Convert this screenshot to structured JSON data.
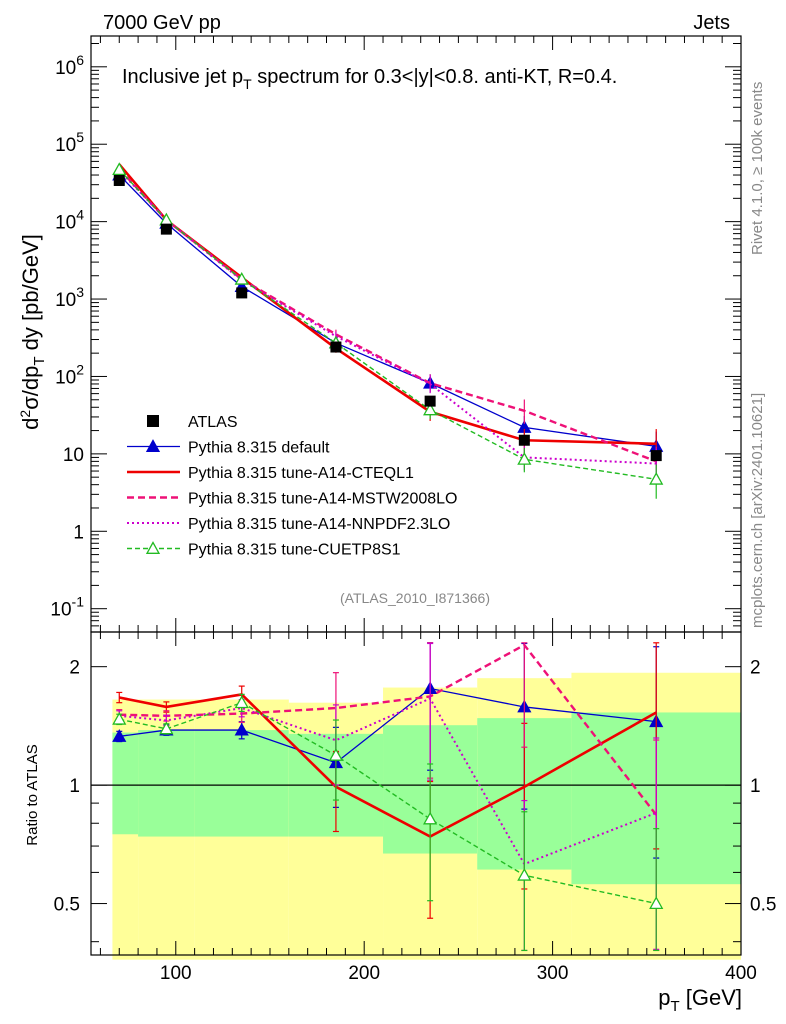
{
  "header": {
    "left": "7000 GeV pp",
    "right": "Jets",
    "title_main": "Inclusive jet p",
    "title_sub": "T",
    "title_rest": " spectrum for 0.3<|y|<0.8.  anti-KT, R=0.4.",
    "ylabel_a": "d",
    "ylabel_b": "2",
    "ylabel_c": "σ/dp",
    "ylabel_d": "T",
    "ylabel_e": " dy [pb/GeV]",
    "ratio_ylabel": "Ratio to ATLAS",
    "xlabel_a": "p",
    "xlabel_b": "T",
    "xlabel_c": " [GeV]",
    "analysis_id": "(ATLAS_2010_I871366)",
    "side_rivet": "Rivet 4.1.0, ≥ 100k events",
    "side_mcplots": "mcplots.cern.ch [arXiv:2401.10621]"
  },
  "colors": {
    "default": "#0000cc",
    "a14cteq": "#ee0000",
    "mstw": "#ee1177",
    "nnpdf": "#cc00cc",
    "cuetp": "#22bb22",
    "band_yellow": "#ffff99",
    "band_green": "#99ff99"
  },
  "chart_data": [
    {
      "type": "line",
      "title": "Inclusive jet pT spectrum for 0.3<|y|<0.8.  anti-KT, R=0.4.",
      "xlabel": "pT [GeV]",
      "ylabel": "d2σ/dpT dy [pb/GeV]",
      "yscale": "log",
      "xlim": [
        55,
        400
      ],
      "ylim": [
        0.05,
        2500000
      ],
      "ytick_labels": [
        "10^-1",
        "1",
        "10",
        "10^2",
        "10^3",
        "10^4",
        "10^5",
        "10^6"
      ],
      "legend_location": "center-left",
      "data_series": {
        "name": "ATLAS",
        "x": [
          70,
          95,
          135,
          185,
          235,
          285,
          355
        ],
        "y": [
          34000,
          8000,
          1200,
          240,
          48,
          15,
          9.5
        ]
      },
      "series": [
        {
          "name": "Pythia 8.315 default",
          "key": "default",
          "style": "solid-triangle",
          "x": [
            70,
            95,
            135,
            185,
            235,
            285,
            355
          ],
          "y": [
            40000,
            9500,
            1450,
            270,
            82,
            22,
            12.5
          ]
        },
        {
          "name": "Pythia 8.315 tune-A14-CTEQL1",
          "key": "a14cteq",
          "style": "solid-thick",
          "x": [
            70,
            95,
            135,
            185,
            235,
            285,
            355
          ],
          "y": [
            55000,
            10500,
            1900,
            230,
            35,
            15,
            13.5
          ]
        },
        {
          "name": "Pythia 8.315 tune-A14-MSTW2008LO",
          "key": "mstw",
          "style": "dashed",
          "x": [
            70,
            95,
            135,
            185,
            235,
            285,
            355
          ],
          "y": [
            48000,
            10500,
            1800,
            350,
            82,
            36,
            8
          ]
        },
        {
          "name": "Pythia 8.315 tune-A14-NNPDF2.3LO",
          "key": "nnpdf",
          "style": "dotted",
          "x": [
            70,
            95,
            135,
            185,
            235,
            285,
            355
          ],
          "y": [
            46000,
            10500,
            1750,
            330,
            80,
            9,
            7.5
          ]
        },
        {
          "name": "Pythia 8.315 tune-CUETP8S1",
          "key": "cuetp",
          "style": "dashed-open-triangle",
          "x": [
            70,
            95,
            135,
            185,
            235,
            285,
            355
          ],
          "y": [
            47000,
            10500,
            1800,
            270,
            37,
            8.5,
            4.7
          ]
        }
      ]
    },
    {
      "type": "line",
      "title": "",
      "xlabel": "pT [GeV]",
      "ylabel": "Ratio to ATLAS",
      "yscale": "log",
      "xlim": [
        55,
        400
      ],
      "ylim": [
        0.37,
        2.45
      ],
      "ytick_labels": [
        "0.5",
        "1",
        "2"
      ],
      "xtick_labels": [
        "100",
        "200",
        "300",
        "400"
      ],
      "bands": {
        "edges": [
          60,
          80,
          110,
          160,
          210,
          260,
          310,
          400
        ],
        "yellow_low": [
          0.36,
          0.36,
          0.36,
          0.36,
          0.36,
          0.36,
          0.36
        ],
        "yellow_high": [
          1.65,
          1.65,
          1.65,
          1.62,
          1.77,
          1.87,
          1.93
        ],
        "green_low": [
          0.75,
          0.74,
          0.74,
          0.74,
          0.67,
          0.61,
          0.56
        ],
        "green_high": [
          1.36,
          1.38,
          1.38,
          1.35,
          1.42,
          1.48,
          1.53
        ]
      },
      "series": [
        {
          "name": "Pythia 8.315 default",
          "key": "default",
          "x": [
            70,
            95,
            135,
            185,
            235,
            285,
            355
          ],
          "y": [
            1.33,
            1.38,
            1.38,
            1.14,
            1.76,
            1.58,
            1.45
          ]
        },
        {
          "name": "Pythia 8.315 tune-A14-CTEQL1",
          "key": "a14cteq",
          "x": [
            70,
            95,
            135,
            185,
            235,
            285,
            355
          ],
          "y": [
            1.67,
            1.58,
            1.7,
            0.99,
            0.74,
            0.99,
            1.53
          ]
        },
        {
          "name": "Pythia 8.315 tune-A14-MSTW2008LO",
          "key": "mstw",
          "x": [
            70,
            95,
            135,
            185,
            235,
            285,
            355
          ],
          "y": [
            1.51,
            1.5,
            1.52,
            1.57,
            1.68,
            2.27,
            0.84
          ]
        },
        {
          "name": "Pythia 8.315 tune-A14-NNPDF2.3LO",
          "key": "nnpdf",
          "x": [
            70,
            95,
            135,
            185,
            235,
            285,
            355
          ],
          "y": [
            1.5,
            1.46,
            1.57,
            1.3,
            1.66,
            0.63,
            0.85
          ]
        },
        {
          "name": "Pythia 8.315 tune-CUETP8S1",
          "key": "cuetp",
          "x": [
            70,
            95,
            135,
            185,
            235,
            285,
            355
          ],
          "y": [
            1.47,
            1.39,
            1.62,
            1.19,
            0.82,
            0.59,
            0.5
          ]
        }
      ]
    }
  ]
}
